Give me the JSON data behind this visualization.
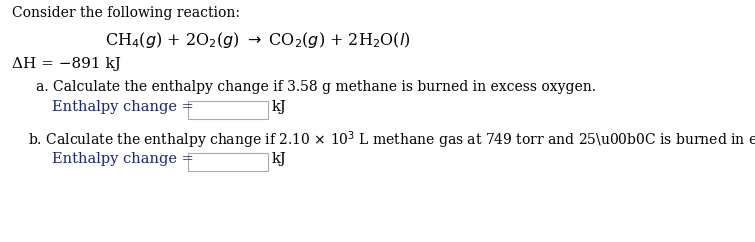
{
  "bg_color": "#ffffff",
  "title_text": "Consider the following reaction:",
  "delta_h": "ΔH = −891 kJ",
  "part_a_text": "a. Calculate the enthalpy change if 3.58 g methane is burned in excess oxygen.",
  "part_a_label": "Enthalpy change =",
  "part_a_unit": "kJ",
  "part_b_label": "Enthalpy change =",
  "part_b_unit": "kJ",
  "text_color": "#000000",
  "label_color": "#1a237e",
  "box_edge_color": "#aaaaaa",
  "font_size_title": 10,
  "font_size_eq": 11.5,
  "font_size_dh": 11,
  "font_size_body": 10,
  "font_size_label": 10.5,
  "fig_width": 7.55,
  "fig_height": 2.42,
  "dpi": 100
}
